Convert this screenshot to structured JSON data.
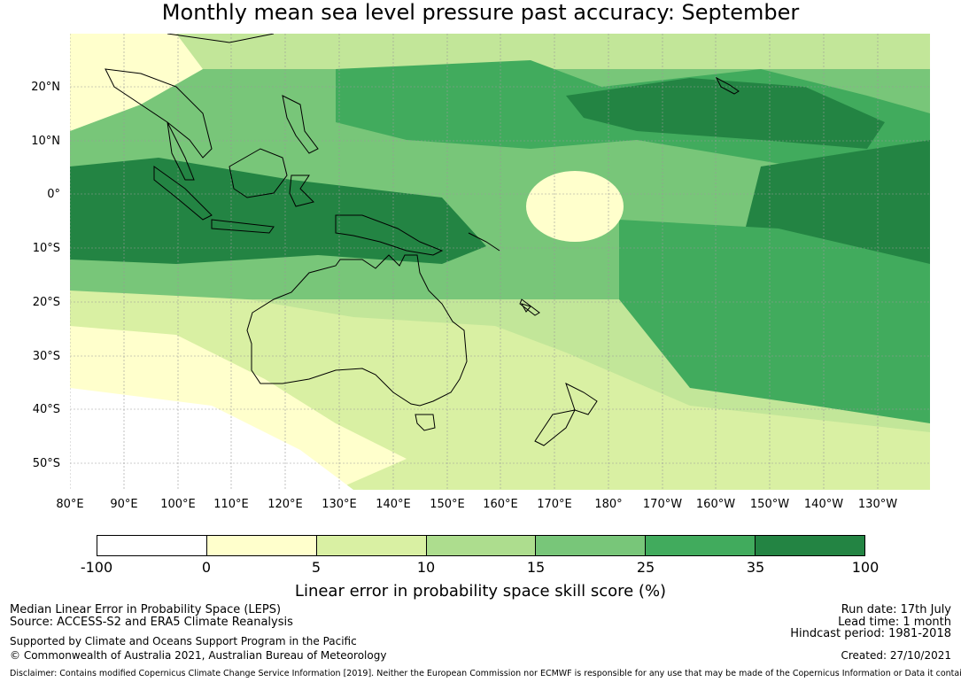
{
  "title": "Monthly mean sea level pressure past accuracy: September",
  "map": {
    "lat_labels": [
      "20°N",
      "10°N",
      "0°",
      "10°S",
      "20°S",
      "30°S",
      "40°S",
      "50°S"
    ],
    "lon_labels": [
      "80°E",
      "90°E",
      "100°E",
      "110°E",
      "120°E",
      "130°E",
      "140°E",
      "150°E",
      "160°E",
      "170°E",
      "180°",
      "170°W",
      "160°W",
      "150°W",
      "140°W",
      "130°W"
    ]
  },
  "legend": {
    "ticks": [
      "-100",
      "0",
      "5",
      "10",
      "15",
      "25",
      "35",
      "100"
    ],
    "colors": [
      "#ffffff",
      "#ffffcc",
      "#d9f0a3",
      "#addd8e",
      "#78c679",
      "#41ab5d",
      "#238443"
    ],
    "label": "Linear error in probability space skill score (%)"
  },
  "footer": {
    "line1": "Median Linear Error in Probability Space (LEPS)",
    "line2": "Source: ACCESS-S2 and ERA5 Climate Reanalysis",
    "line3": "Supported by Climate and Oceans Support Program in the Pacific",
    "line4": "© Commonwealth of Australia 2021, Australian Bureau of Meteorology",
    "run_date": "Run date: 17th July",
    "lead_time": "Lead time: 1 month",
    "hindcast": "Hindcast period: 1981-2018",
    "created": "Created: 27/10/2021",
    "disclaimer": "Disclaimer: Contains modified Copernicus Climate Change Service Information [2019]. Neither the European Commission nor ECMWF is responsible for any use that may be made of the Copernicus Information or Data it contains."
  }
}
